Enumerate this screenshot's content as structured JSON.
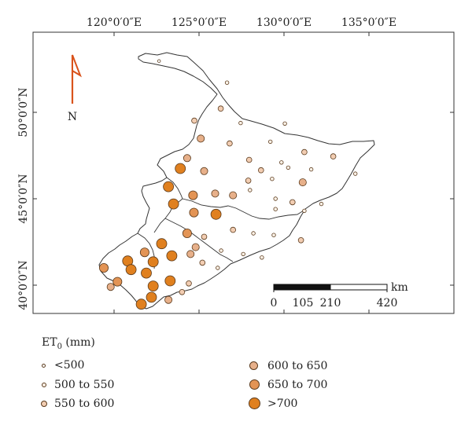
{
  "axes": {
    "lon_labels": [
      "120°0′0″E",
      "125°0′0″E",
      "130°0′0″E",
      "135°0′0″E"
    ],
    "lat_labels": [
      "50°0′0″N",
      "45°0′0″N",
      "40°0′0″N"
    ]
  },
  "north_arrow": {
    "label": "N"
  },
  "scale_bar": {
    "unit": "km",
    "ticks": [
      "0",
      "105",
      "210",
      "420"
    ]
  },
  "legend": {
    "title_main": "ET",
    "title_sub": "0",
    "title_unit": " (mm)",
    "classes": [
      {
        "label": "<500",
        "color": "#ffffff"
      },
      {
        "label": "500 to 550",
        "color": "#fbf1e6"
      },
      {
        "label": "550 to 600",
        "color": "#f2cdb2"
      },
      {
        "label": "600 to 650",
        "color": "#e7b08a"
      },
      {
        "label": "650 to 700",
        "color": "#e39455"
      },
      {
        "label": ">700",
        "color": "#e0801f"
      }
    ]
  },
  "colors": {
    "arrow": "#d9531c",
    "outline": "#333333",
    "scale_dark": "#111111"
  },
  "stations_lonlat": [
    [
      122.65,
      52.97,
      0
    ],
    [
      126.65,
      51.72,
      1
    ],
    [
      126.28,
      50.22,
      2
    ],
    [
      124.72,
      49.52,
      2
    ],
    [
      127.45,
      49.38,
      1
    ],
    [
      130.05,
      49.35,
      1
    ],
    [
      125.1,
      48.48,
      3
    ],
    [
      126.8,
      48.2,
      2
    ],
    [
      129.2,
      48.3,
      1
    ],
    [
      131.2,
      47.7,
      2
    ],
    [
      132.9,
      47.45,
      2
    ],
    [
      124.3,
      47.35,
      3
    ],
    [
      127.95,
      47.25,
      2
    ],
    [
      129.85,
      47.1,
      1
    ],
    [
      128.65,
      46.65,
      2
    ],
    [
      130.25,
      46.8,
      1
    ],
    [
      131.6,
      46.7,
      1
    ],
    [
      134.2,
      46.45,
      1
    ],
    [
      123.9,
      46.75,
      5
    ],
    [
      125.3,
      46.6,
      3
    ],
    [
      127.9,
      46.05,
      2
    ],
    [
      129.3,
      46.15,
      1
    ],
    [
      131.1,
      45.95,
      3
    ],
    [
      123.2,
      45.7,
      5
    ],
    [
      124.65,
      45.2,
      4
    ],
    [
      125.95,
      45.3,
      3
    ],
    [
      127.0,
      45.2,
      3
    ],
    [
      128.0,
      45.5,
      1
    ],
    [
      129.5,
      45.0,
      1
    ],
    [
      130.5,
      44.8,
      2
    ],
    [
      132.2,
      44.7,
      1
    ],
    [
      123.5,
      44.7,
      5
    ],
    [
      124.7,
      44.2,
      4
    ],
    [
      126.0,
      44.1,
      5
    ],
    [
      129.5,
      44.4,
      1
    ],
    [
      131.2,
      44.3,
      1
    ],
    [
      124.3,
      43.0,
      4
    ],
    [
      125.3,
      42.8,
      2
    ],
    [
      127.0,
      43.2,
      2
    ],
    [
      128.2,
      43.0,
      1
    ],
    [
      129.4,
      42.9,
      1
    ],
    [
      131.0,
      42.6,
      2
    ],
    [
      124.8,
      42.2,
      3
    ],
    [
      126.3,
      42.0,
      1
    ],
    [
      127.6,
      41.8,
      1
    ],
    [
      128.7,
      41.6,
      1
    ],
    [
      122.8,
      42.4,
      5
    ],
    [
      121.8,
      41.9,
      4
    ],
    [
      120.8,
      41.4,
      5
    ],
    [
      119.4,
      41.0,
      4
    ],
    [
      121.0,
      40.9,
      5
    ],
    [
      122.3,
      41.35,
      5
    ],
    [
      123.4,
      41.7,
      5
    ],
    [
      124.5,
      41.8,
      3
    ],
    [
      125.2,
      41.3,
      2
    ],
    [
      126.1,
      41.0,
      1
    ],
    [
      120.2,
      40.2,
      4
    ],
    [
      119.8,
      39.9,
      3
    ],
    [
      121.9,
      40.7,
      5
    ],
    [
      123.3,
      40.25,
      5
    ],
    [
      124.4,
      40.1,
      2
    ],
    [
      122.3,
      39.95,
      5
    ],
    [
      122.2,
      39.3,
      5
    ],
    [
      123.2,
      39.15,
      3
    ],
    [
      124.0,
      39.6,
      2
    ],
    [
      121.6,
      38.9,
      5
    ]
  ]
}
